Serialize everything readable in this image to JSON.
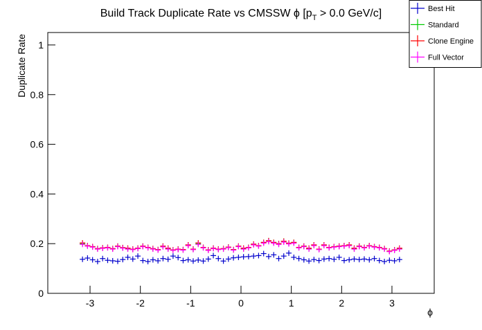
{
  "chart_data": {
    "type": "scatter",
    "title_main": "Build Track Duplicate Rate vs CMSSW ϕ [p",
    "title_sub": "T",
    "title_end": " > 0.0 GeV/c]",
    "y_label": "Duplicate Rate",
    "x_label": "ϕ",
    "xlim": [
      -3.84,
      3.84
    ],
    "ylim": [
      0,
      1.05
    ],
    "xticks": [
      -3,
      -2,
      -1,
      0,
      1,
      2,
      3
    ],
    "yticks": [
      0,
      0.2,
      0.4,
      0.6,
      0.8,
      1
    ],
    "legend": "top-right",
    "x": [
      -3.15,
      -3.05,
      -2.95,
      -2.85,
      -2.75,
      -2.65,
      -2.55,
      -2.45,
      -2.35,
      -2.25,
      -2.15,
      -2.05,
      -1.95,
      -1.85,
      -1.75,
      -1.65,
      -1.55,
      -1.45,
      -1.35,
      -1.25,
      -1.15,
      -1.05,
      -0.95,
      -0.85,
      -0.75,
      -0.65,
      -0.55,
      -0.45,
      -0.35,
      -0.25,
      -0.15,
      -0.05,
      0.05,
      0.15,
      0.25,
      0.35,
      0.45,
      0.55,
      0.65,
      0.75,
      0.85,
      0.95,
      1.05,
      1.15,
      1.25,
      1.35,
      1.45,
      1.55,
      1.65,
      1.75,
      1.85,
      1.95,
      2.05,
      2.15,
      2.25,
      2.35,
      2.45,
      2.55,
      2.65,
      2.75,
      2.85,
      2.95,
      3.05,
      3.15
    ],
    "series": [
      {
        "name": "Best Hit",
        "color": "#0000cc",
        "values": [
          0.137,
          0.142,
          0.135,
          0.128,
          0.14,
          0.133,
          0.131,
          0.129,
          0.136,
          0.145,
          0.138,
          0.15,
          0.132,
          0.128,
          0.135,
          0.131,
          0.14,
          0.137,
          0.15,
          0.144,
          0.132,
          0.135,
          0.13,
          0.134,
          0.13,
          0.138,
          0.152,
          0.14,
          0.13,
          0.138,
          0.143,
          0.145,
          0.147,
          0.148,
          0.15,
          0.152,
          0.16,
          0.148,
          0.155,
          0.14,
          0.15,
          0.162,
          0.145,
          0.14,
          0.135,
          0.13,
          0.136,
          0.132,
          0.138,
          0.14,
          0.137,
          0.145,
          0.132,
          0.135,
          0.138,
          0.136,
          0.138,
          0.135,
          0.14,
          0.132,
          0.128,
          0.133,
          0.131,
          0.136
        ]
      },
      {
        "name": "Standard",
        "color": "#00cc00",
        "values": [
          0.2,
          0.192,
          0.188,
          0.18,
          0.183,
          0.185,
          0.18,
          0.19,
          0.184,
          0.18,
          0.178,
          0.182,
          0.19,
          0.185,
          0.18,
          0.176,
          0.19,
          0.18,
          0.175,
          0.178,
          0.176,
          0.195,
          0.178,
          0.2,
          0.185,
          0.175,
          0.182,
          0.178,
          0.18,
          0.186,
          0.176,
          0.19,
          0.18,
          0.185,
          0.198,
          0.192,
          0.205,
          0.212,
          0.205,
          0.2,
          0.21,
          0.202,
          0.205,
          0.185,
          0.19,
          0.18,
          0.195,
          0.178,
          0.195,
          0.185,
          0.188,
          0.19,
          0.192,
          0.195,
          0.18,
          0.19,
          0.185,
          0.192,
          0.188,
          0.185,
          0.18,
          0.17,
          0.175,
          0.18
        ]
      },
      {
        "name": "Clone Engine",
        "color": "#ff0000",
        "values": [
          0.203,
          0.192,
          0.188,
          0.18,
          0.183,
          0.185,
          0.18,
          0.19,
          0.184,
          0.182,
          0.178,
          0.182,
          0.19,
          0.185,
          0.18,
          0.176,
          0.19,
          0.182,
          0.175,
          0.178,
          0.176,
          0.195,
          0.178,
          0.203,
          0.185,
          0.175,
          0.182,
          0.178,
          0.18,
          0.186,
          0.176,
          0.19,
          0.182,
          0.185,
          0.198,
          0.192,
          0.205,
          0.212,
          0.205,
          0.2,
          0.21,
          0.202,
          0.205,
          0.185,
          0.19,
          0.182,
          0.195,
          0.178,
          0.195,
          0.185,
          0.188,
          0.19,
          0.192,
          0.195,
          0.182,
          0.19,
          0.185,
          0.192,
          0.188,
          0.185,
          0.18,
          0.17,
          0.175,
          0.182
        ]
      },
      {
        "name": "Full Vector",
        "color": "#ff00ff",
        "values": [
          0.197,
          0.19,
          0.186,
          0.178,
          0.181,
          0.183,
          0.178,
          0.188,
          0.182,
          0.178,
          0.176,
          0.18,
          0.188,
          0.183,
          0.178,
          0.174,
          0.187,
          0.178,
          0.173,
          0.176,
          0.174,
          0.192,
          0.176,
          0.197,
          0.183,
          0.173,
          0.18,
          0.176,
          0.178,
          0.184,
          0.174,
          0.188,
          0.178,
          0.183,
          0.195,
          0.19,
          0.202,
          0.208,
          0.202,
          0.197,
          0.206,
          0.199,
          0.202,
          0.183,
          0.188,
          0.178,
          0.192,
          0.176,
          0.192,
          0.183,
          0.186,
          0.188,
          0.19,
          0.192,
          0.178,
          0.188,
          0.183,
          0.19,
          0.186,
          0.183,
          0.178,
          0.168,
          0.173,
          0.178
        ]
      }
    ]
  }
}
